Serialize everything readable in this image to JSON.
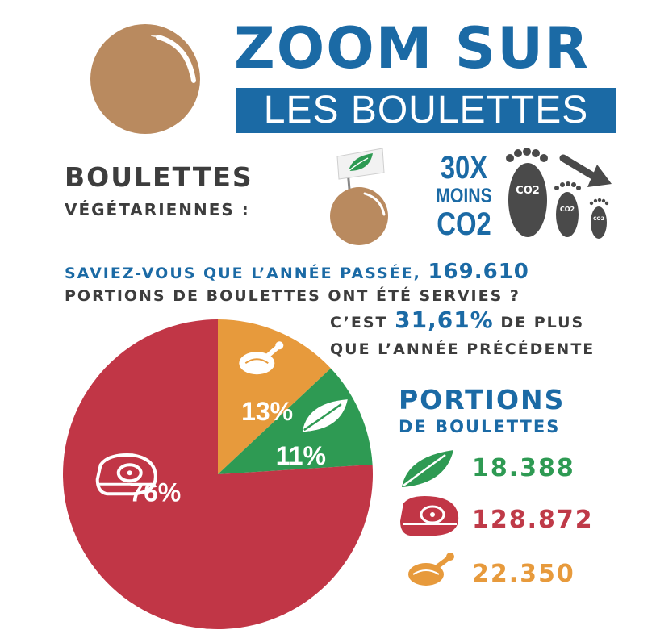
{
  "header": {
    "title": "ZOOM SUR",
    "subtitle": "LES BOULETTES"
  },
  "vegetarian": {
    "title": "BOULETTES",
    "subtitle": "VÉGÉTARIENNES :",
    "co2_factor": "30X",
    "co2_moins": "MOINS",
    "co2_label": "CO2",
    "footprint_label": "CO2"
  },
  "facts": {
    "line1_text": "SAVIEZ-VOUS QUE L’ANNÉE PASSÉE,",
    "line1_number": "169.610",
    "line2": "PORTIONS DE BOULETTES ONT ÉTÉ SERVIES ?",
    "line3_prefix": "C’EST",
    "line3_percent": "31,61%",
    "line3_suffix": "DE PLUS",
    "line4": "QUE L’ANNÉE PRÉCÉDENTE"
  },
  "portions": {
    "title": "PORTIONS",
    "subtitle": "DE BOULETTES"
  },
  "chart_data": {
    "type": "pie",
    "slices": [
      {
        "key": "meat",
        "label": "76%",
        "value": 76,
        "portions": "128.872",
        "color": "#c13646",
        "icon": "steak-icon"
      },
      {
        "key": "chicken",
        "label": "13%",
        "value": 13,
        "portions": "22.350",
        "color": "#e79a3c",
        "icon": "chicken-icon"
      },
      {
        "key": "veg",
        "label": "11%",
        "value": 11,
        "portions": "18.388",
        "color": "#2e9a53",
        "icon": "leaf-icon"
      }
    ]
  },
  "colors": {
    "blue": "#1b6aa5",
    "dark_text": "#3d3d3d",
    "meatball_brown": "#b98a5f",
    "meat_red": "#c13646",
    "chicken_orange": "#e79a3c",
    "veg_green": "#2e9a53"
  }
}
